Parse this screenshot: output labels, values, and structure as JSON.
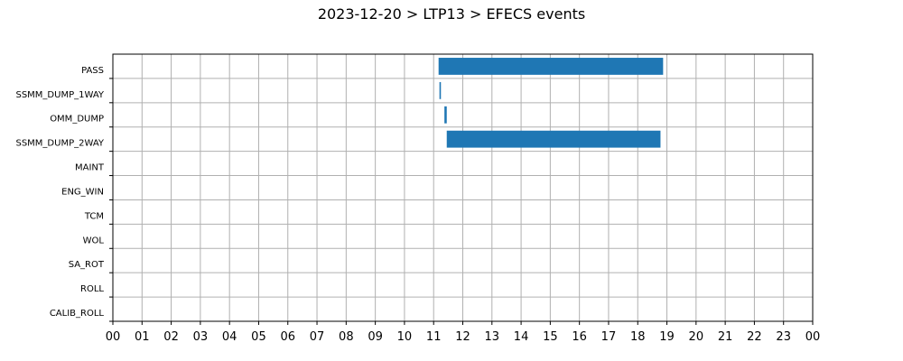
{
  "chart_data": {
    "type": "bar",
    "orientation": "horizontal",
    "title": "2023-12-20 > LTP13 > EFECS events",
    "xlabel": "",
    "ylabel": "",
    "xlim": [
      0,
      24
    ],
    "x_unit": "hour of day",
    "x_tick_labels": [
      "00",
      "01",
      "02",
      "03",
      "04",
      "05",
      "06",
      "07",
      "08",
      "09",
      "10",
      "11",
      "12",
      "13",
      "14",
      "15",
      "16",
      "17",
      "18",
      "19",
      "20",
      "21",
      "22",
      "23",
      "00"
    ],
    "categories": [
      "PASS",
      "SSMM_DUMP_1WAY",
      "OMM_DUMP",
      "SSMM_DUMP_2WAY",
      "MAINT",
      "ENG_WIN",
      "TCM",
      "WOL",
      "SA_ROT",
      "ROLL",
      "CALIB_ROLL"
    ],
    "events": [
      {
        "category": "PASS",
        "start": 11.17,
        "end": 18.87
      },
      {
        "category": "SSMM_DUMP_1WAY",
        "start": 11.2,
        "end": 11.25
      },
      {
        "category": "OMM_DUMP",
        "start": 11.37,
        "end": 11.45
      },
      {
        "category": "SSMM_DUMP_2WAY",
        "start": 11.45,
        "end": 18.78
      }
    ],
    "grid": true,
    "bar_color": "#1f77b4"
  }
}
